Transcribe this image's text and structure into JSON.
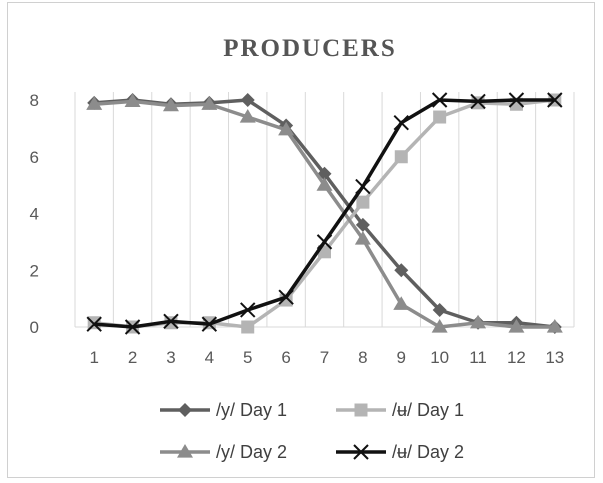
{
  "chart_data": {
    "type": "line",
    "title": "PRODUCERS",
    "x": [
      1,
      2,
      3,
      4,
      5,
      6,
      7,
      8,
      9,
      10,
      11,
      12,
      13
    ],
    "ylim": [
      0,
      8
    ],
    "yticks": [
      0,
      2,
      4,
      6,
      8
    ],
    "grid": "vertical",
    "legend": "bottom",
    "series": [
      {
        "name": "/y/ Day 1",
        "color": "#5f5f5f",
        "marker": "diamond",
        "values": [
          7.9,
          8.0,
          7.85,
          7.9,
          8.0,
          7.1,
          5.4,
          3.6,
          2.0,
          0.6,
          0.15,
          0.15,
          0.0
        ]
      },
      {
        "name": "/ʉ/ Day 1",
        "color": "#b4b4b4",
        "marker": "square",
        "values": [
          0.15,
          0.0,
          0.15,
          0.15,
          0.0,
          0.95,
          2.65,
          4.4,
          6.0,
          7.4,
          7.9,
          7.85,
          8.0
        ]
      },
      {
        "name": "/y/ Day 2",
        "color": "#8c8c8c",
        "marker": "triangle",
        "values": [
          7.85,
          7.95,
          7.8,
          7.85,
          7.4,
          6.95,
          5.0,
          3.1,
          0.8,
          0.0,
          0.15,
          0.0,
          0.0
        ]
      },
      {
        "name": "/ʉ/ Day 2",
        "color": "#111111",
        "marker": "x",
        "values": [
          0.1,
          0.0,
          0.2,
          0.1,
          0.6,
          1.05,
          3.0,
          4.95,
          7.2,
          8.0,
          7.95,
          8.0,
          8.0
        ]
      }
    ]
  }
}
